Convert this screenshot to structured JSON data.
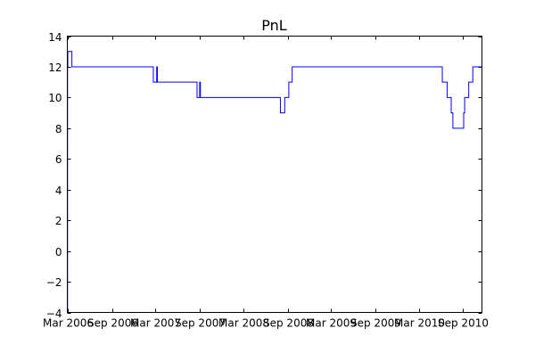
{
  "chart_data": {
    "type": "line",
    "title": "PnL",
    "xlabel": "",
    "ylabel": "",
    "x_tick_labels": [
      "Mar 2006",
      "Sep 2006",
      "Mar 2007",
      "Sep 2007",
      "Mar 2008",
      "Sep 2008",
      "Mar 2009",
      "Sep 2009",
      "Mar 2010",
      "Sep 2010"
    ],
    "y_tick_labels": [
      "−4",
      "−2",
      "0",
      "2",
      "4",
      "6",
      "8",
      "10",
      "12",
      "14"
    ],
    "y_ticks": [
      -4,
      -2,
      0,
      2,
      4,
      6,
      8,
      10,
      12,
      14
    ],
    "ylim": [
      -4,
      14
    ],
    "xlim": [
      "2006-02-27",
      "2010-11-19"
    ],
    "step": true,
    "grid": false,
    "line_color": "#0000ff",
    "series": [
      {
        "x": [
          "2006-02-28",
          "2006-03-01",
          "2006-03-03",
          "2006-03-18",
          "2006-03-21",
          "2007-02-20",
          "2007-03-06",
          "2007-03-09",
          "2007-03-24",
          "2007-08-21",
          "2007-09-01",
          "2007-09-04",
          "2007-09-15",
          "2008-08-02",
          "2008-08-20",
          "2008-09-06",
          "2008-09-20",
          "2010-06-07",
          "2010-06-27",
          "2010-07-14",
          "2010-07-21",
          "2010-08-15",
          "2010-09-04",
          "2010-09-08",
          "2010-09-25",
          "2010-10-12",
          "2010-11-19"
        ],
        "values": [
          -4,
          12,
          13,
          13,
          12,
          12,
          11,
          12,
          11,
          11,
          10,
          11,
          10,
          10,
          9,
          10,
          11,
          12,
          11,
          10,
          9,
          8,
          8,
          9,
          10,
          11,
          12
        ]
      }
    ]
  }
}
